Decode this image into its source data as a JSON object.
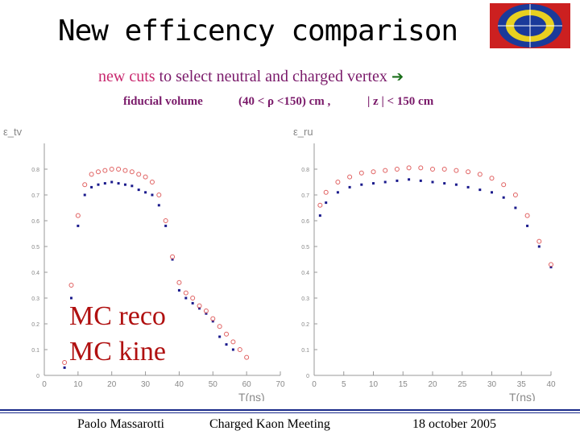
{
  "slide": {
    "title": "New efficency comparison",
    "subtitle_part1": "new cuts",
    "subtitle_part2": " to select neutral and charged vertex ",
    "cut_fiducial": "fiducial volume",
    "cut_rho": "(40 < ρ <150) cm ,",
    "cut_z": "| z | < 150 cm",
    "legend_reco": "MC reco",
    "legend_kine": "MC kine",
    "footer_author": "Paolo Massarotti",
    "footer_meeting": "Charged Kaon Meeting",
    "footer_date": "18 october 2005"
  },
  "colors": {
    "reco": "#1a1a8c",
    "kine": "#e06060",
    "title_sub": "#7a1a6a",
    "footer": "#1a2a8a"
  },
  "chart_data": [
    {
      "type": "scatter",
      "ylabel": "ε_tv",
      "xlabel": "T(ns)",
      "xlim": [
        0,
        70
      ],
      "ylim": [
        0,
        0.9
      ],
      "x_ticks": [
        0,
        10,
        20,
        30,
        40,
        50,
        60,
        70
      ],
      "y_ticks": [
        0,
        0.1,
        0.2,
        0.3,
        0.4,
        0.5,
        0.6,
        0.7,
        0.8
      ],
      "series": [
        {
          "name": "MC reco",
          "color": "#1a1a8c",
          "x": [
            6,
            8,
            10,
            12,
            14,
            16,
            18,
            20,
            22,
            24,
            26,
            28,
            30,
            32,
            34,
            36,
            38,
            40,
            42,
            44,
            46,
            48,
            50,
            52,
            54,
            56
          ],
          "y": [
            0.03,
            0.3,
            0.58,
            0.7,
            0.73,
            0.74,
            0.745,
            0.75,
            0.745,
            0.74,
            0.735,
            0.72,
            0.71,
            0.7,
            0.66,
            0.58,
            0.45,
            0.33,
            0.3,
            0.28,
            0.26,
            0.24,
            0.21,
            0.15,
            0.12,
            0.1
          ]
        },
        {
          "name": "MC kine",
          "color": "#e06060",
          "x": [
            6,
            8,
            10,
            12,
            14,
            16,
            18,
            20,
            22,
            24,
            26,
            28,
            30,
            32,
            34,
            36,
            38,
            40,
            42,
            44,
            46,
            48,
            50,
            52,
            54,
            56,
            58,
            60
          ],
          "y": [
            0.05,
            0.35,
            0.62,
            0.74,
            0.78,
            0.79,
            0.795,
            0.8,
            0.8,
            0.795,
            0.79,
            0.78,
            0.77,
            0.75,
            0.7,
            0.6,
            0.46,
            0.36,
            0.32,
            0.3,
            0.27,
            0.25,
            0.22,
            0.19,
            0.16,
            0.13,
            0.1,
            0.07
          ]
        }
      ]
    },
    {
      "type": "scatter",
      "ylabel": "ε_ru",
      "xlabel": "T(ns)",
      "xlim": [
        0,
        40
      ],
      "ylim": [
        0,
        0.9
      ],
      "x_ticks": [
        0,
        5,
        10,
        15,
        20,
        25,
        30,
        35,
        40
      ],
      "y_ticks": [
        0,
        0.1,
        0.2,
        0.3,
        0.4,
        0.5,
        0.6,
        0.7,
        0.8
      ],
      "series": [
        {
          "name": "MC reco",
          "color": "#1a1a8c",
          "x": [
            1,
            2,
            4,
            6,
            8,
            10,
            12,
            14,
            16,
            18,
            20,
            22,
            24,
            26,
            28,
            30,
            32,
            34,
            36,
            38,
            40
          ],
          "y": [
            0.62,
            0.67,
            0.71,
            0.73,
            0.74,
            0.745,
            0.75,
            0.755,
            0.76,
            0.755,
            0.75,
            0.745,
            0.74,
            0.73,
            0.72,
            0.71,
            0.69,
            0.65,
            0.58,
            0.5,
            0.42
          ]
        },
        {
          "name": "MC kine",
          "color": "#e06060",
          "x": [
            1,
            2,
            4,
            6,
            8,
            10,
            12,
            14,
            16,
            18,
            20,
            22,
            24,
            26,
            28,
            30,
            32,
            34,
            36,
            38,
            40
          ],
          "y": [
            0.66,
            0.71,
            0.75,
            0.77,
            0.785,
            0.79,
            0.795,
            0.8,
            0.805,
            0.805,
            0.8,
            0.8,
            0.795,
            0.79,
            0.78,
            0.765,
            0.74,
            0.7,
            0.62,
            0.52,
            0.43
          ]
        }
      ]
    }
  ]
}
